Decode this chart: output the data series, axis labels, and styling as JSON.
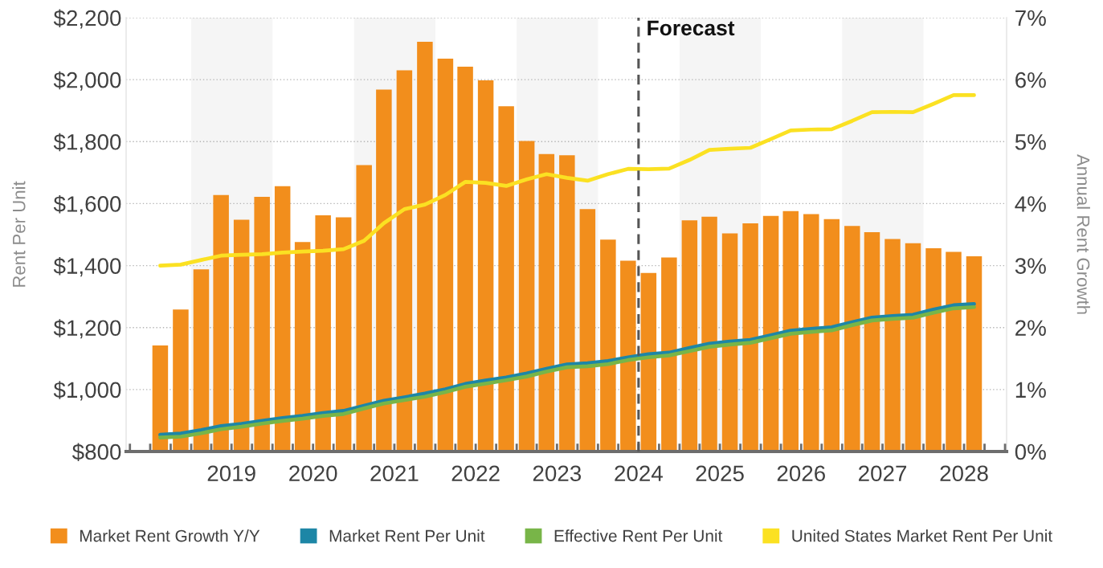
{
  "chart_data": {
    "type": "bar",
    "x": [
      "2018-08-15",
      "2018-11-15",
      "2019-02-15",
      "2019-05-15",
      "2019-08-15",
      "2019-11-15",
      "2020-02-15",
      "2020-05-15",
      "2020-08-15",
      "2020-11-15",
      "2021-02-15",
      "2021-05-15",
      "2021-08-15",
      "2021-11-15",
      "2022-02-15",
      "2022-05-15",
      "2022-08-15",
      "2022-11-15",
      "2023-02-15",
      "2023-05-15",
      "2023-08-15",
      "2023-11-15",
      "2024-02-15",
      "2024-05-15",
      "2024-08-15",
      "2024-11-15",
      "2025-02-15",
      "2025-05-15",
      "2025-08-15",
      "2025-11-15",
      "2026-02-15",
      "2026-05-15",
      "2026-08-15",
      "2026-11-15",
      "2027-02-15",
      "2027-05-15",
      "2027-08-15",
      "2027-11-15",
      "2028-02-15",
      "2028-05-15",
      "2028-08-15"
    ],
    "series": [
      {
        "name": "Market Rent Growth Y/Y",
        "axis": "y2",
        "color": "#f28e1c",
        "values": [
          1.71,
          2.29,
          2.94,
          4.14,
          3.74,
          4.11,
          4.28,
          3.38,
          3.81,
          3.78,
          4.62,
          5.84,
          6.15,
          6.61,
          6.34,
          6.21,
          5.99,
          5.57,
          5.01,
          4.8,
          4.78,
          3.91,
          3.42,
          3.08,
          2.88,
          3.13,
          3.73,
          3.79,
          3.52,
          3.68,
          3.8,
          3.88,
          3.83,
          3.75,
          3.64,
          3.54,
          3.43,
          3.36,
          3.28,
          3.22,
          3.15
        ]
      },
      {
        "name": "Market Rent Per Unit",
        "type": "line",
        "axis": "y",
        "color": "#1d86a6",
        "values": [
          854,
          858,
          869,
          882,
          889,
          899,
          908,
          915,
          924,
          931,
          948,
          964,
          975,
          987,
          1001,
          1018,
          1029,
          1039,
          1052,
          1067,
          1081,
          1085,
          1092,
          1104,
          1114,
          1119,
          1134,
          1148,
          1155,
          1160,
          1175,
          1190,
          1196,
          1201,
          1217,
          1232,
          1237,
          1241,
          1258,
          1272,
          1276
        ]
      },
      {
        "name": "Effective Rent Per Unit",
        "type": "line",
        "axis": "y",
        "color": "#78b548",
        "values": [
          845,
          848,
          859,
          872,
          880,
          890,
          899,
          906,
          915,
          921,
          939,
          955,
          966,
          977,
          992,
          1009,
          1019,
          1030,
          1042,
          1058,
          1072,
          1075,
          1082,
          1095,
          1104,
          1110,
          1124,
          1138,
          1145,
          1151,
          1166,
          1180,
          1186,
          1191,
          1208,
          1223,
          1228,
          1232,
          1248,
          1262,
          1266
        ]
      },
      {
        "name": "United States Market Rent Per Unit",
        "type": "line",
        "axis": "y",
        "color": "#fbe122",
        "values": [
          1400,
          1403,
          1418,
          1432,
          1435,
          1437,
          1442,
          1445,
          1448,
          1453,
          1480,
          1537,
          1582,
          1597,
          1628,
          1670,
          1667,
          1657,
          1678,
          1695,
          1683,
          1674,
          1695,
          1712,
          1711,
          1713,
          1741,
          1773,
          1777,
          1780,
          1808,
          1836,
          1839,
          1840,
          1867,
          1895,
          1896,
          1895,
          1922,
          1950,
          1950
        ]
      }
    ],
    "xlim": [
      "2018-03-15",
      "2029-01-08"
    ],
    "xticks": [
      {
        "value": "2018-04-01",
        "label": null
      },
      {
        "value": "2018-07-01",
        "label": null
      },
      {
        "value": "2018-10-01",
        "label": null
      },
      {
        "value": "2019-01-01",
        "label": null
      },
      {
        "value": "2019-04-01",
        "label": null
      },
      {
        "value": "2019-07-01",
        "label": "2019"
      },
      {
        "value": "2019-10-01",
        "label": null
      },
      {
        "value": "2020-01-01",
        "label": null
      },
      {
        "value": "2020-04-01",
        "label": null
      },
      {
        "value": "2020-07-01",
        "label": "2020"
      },
      {
        "value": "2020-10-01",
        "label": null
      },
      {
        "value": "2021-01-01",
        "label": null
      },
      {
        "value": "2021-04-01",
        "label": null
      },
      {
        "value": "2021-07-01",
        "label": "2021"
      },
      {
        "value": "2021-10-01",
        "label": null
      },
      {
        "value": "2022-01-01",
        "label": null
      },
      {
        "value": "2022-04-01",
        "label": null
      },
      {
        "value": "2022-07-01",
        "label": "2022"
      },
      {
        "value": "2022-10-01",
        "label": null
      },
      {
        "value": "2023-01-01",
        "label": null
      },
      {
        "value": "2023-04-01",
        "label": null
      },
      {
        "value": "2023-07-01",
        "label": "2023"
      },
      {
        "value": "2023-10-01",
        "label": null
      },
      {
        "value": "2024-01-01",
        "label": null
      },
      {
        "value": "2024-04-01",
        "label": null
      },
      {
        "value": "2024-07-01",
        "label": "2024"
      },
      {
        "value": "2024-10-01",
        "label": null
      },
      {
        "value": "2025-01-01",
        "label": null
      },
      {
        "value": "2025-04-01",
        "label": null
      },
      {
        "value": "2025-07-01",
        "label": "2025"
      },
      {
        "value": "2025-10-01",
        "label": null
      },
      {
        "value": "2026-01-01",
        "label": null
      },
      {
        "value": "2026-04-01",
        "label": null
      },
      {
        "value": "2026-07-01",
        "label": "2026"
      },
      {
        "value": "2026-10-01",
        "label": null
      },
      {
        "value": "2027-01-01",
        "label": null
      },
      {
        "value": "2027-04-01",
        "label": null
      },
      {
        "value": "2027-07-01",
        "label": "2027"
      },
      {
        "value": "2027-10-01",
        "label": null
      },
      {
        "value": "2028-01-01",
        "label": null
      },
      {
        "value": "2028-04-01",
        "label": null
      },
      {
        "value": "2028-07-01",
        "label": "2028"
      },
      {
        "value": "2028-10-01",
        "label": null
      },
      {
        "value": "2029-01-01",
        "label": null
      }
    ],
    "ylim": [
      800,
      2200
    ],
    "yticks": [
      {
        "value": 800,
        "label": "$800"
      },
      {
        "value": 1000,
        "label": "$1,000"
      },
      {
        "value": 1200,
        "label": "$1,200"
      },
      {
        "value": 1400,
        "label": "$1,400"
      },
      {
        "value": 1600,
        "label": "$1,600"
      },
      {
        "value": 1800,
        "label": "$1,800"
      },
      {
        "value": 2000,
        "label": "$2,000"
      },
      {
        "value": 2200,
        "label": "$2,200"
      }
    ],
    "y2lim": [
      0,
      7
    ],
    "y2ticks": [
      {
        "value": 0,
        "label": "0%"
      },
      {
        "value": 1,
        "label": "1%"
      },
      {
        "value": 2,
        "label": "2%"
      },
      {
        "value": 3,
        "label": "3%"
      },
      {
        "value": 4,
        "label": "4%"
      },
      {
        "value": 5,
        "label": "5%"
      },
      {
        "value": 6,
        "label": "6%"
      },
      {
        "value": 7,
        "label": "7%"
      }
    ],
    "ylabel": "Rent Per Unit",
    "y2label": "Annual Rent Growth",
    "ref_lines": [
      {
        "axis": "x",
        "value": "2024-07-01",
        "label": "Forecast",
        "color": "#555555",
        "line_style": "dashed"
      }
    ],
    "bands": [
      {
        "axis": "x",
        "from": "2019-01-01",
        "to": "2020-01-01",
        "color": "#f5f5f5"
      },
      {
        "axis": "x",
        "from": "2021-01-01",
        "to": "2022-01-01",
        "color": "#f5f5f5"
      },
      {
        "axis": "x",
        "from": "2023-01-01",
        "to": "2024-01-01",
        "color": "#f5f5f5"
      },
      {
        "axis": "x",
        "from": "2025-01-01",
        "to": "2026-01-01",
        "color": "#f5f5f5"
      },
      {
        "axis": "x",
        "from": "2027-01-01",
        "to": "2028-01-01",
        "color": "#f5f5f5"
      }
    ],
    "grid": "y",
    "legend": "bottom"
  }
}
